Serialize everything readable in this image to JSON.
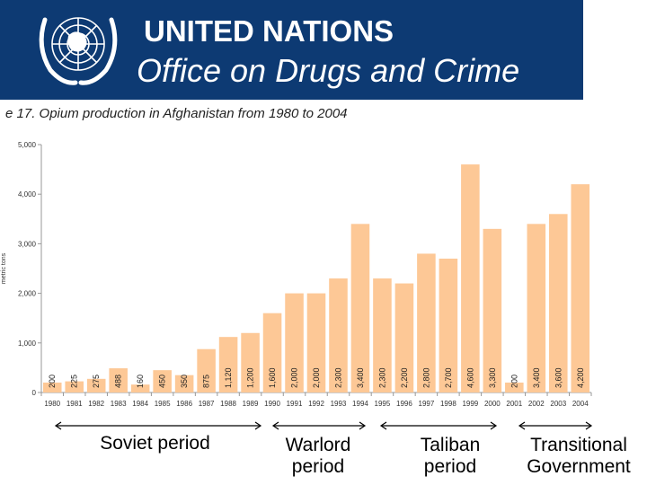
{
  "header": {
    "org_name": "UNITED NATIONS",
    "office_name": "Office on Drugs and Crime",
    "background_color": "#0d3a73"
  },
  "chart_data": {
    "type": "bar",
    "title": "e 17.  Opium production in Afghanistan from 1980 to 2004",
    "ylabel": "metric tons",
    "xlabel": "",
    "ylim": [
      0,
      5000
    ],
    "yticks": [
      "0",
      "1,000",
      "2,000",
      "3,000",
      "4,000",
      "5,000"
    ],
    "grid": false,
    "bar_color": "#fdc896",
    "categories": [
      "1980",
      "1981",
      "1982",
      "1983",
      "1984",
      "1985",
      "1986",
      "1987",
      "1988",
      "1989",
      "1990",
      "1991",
      "1992",
      "1993",
      "1994",
      "1995",
      "1996",
      "1997",
      "1998",
      "1999",
      "2000",
      "2001",
      "2002",
      "2003",
      "2004"
    ],
    "values": [
      200,
      225,
      275,
      488,
      160,
      450,
      350,
      875,
      1120,
      1200,
      1600,
      2000,
      2000,
      2300,
      3400,
      2300,
      2200,
      2800,
      2700,
      4600,
      3300,
      200,
      3400,
      3600,
      4200
    ],
    "value_labels": [
      "200",
      "225",
      "275",
      "488",
      "160",
      "450",
      "350",
      "875",
      "1,120",
      "1,200",
      "1,600",
      "2,000",
      "2,000",
      "2,300",
      "3,400",
      "2,300",
      "2,200",
      "2,800",
      "2,700",
      "4,600",
      "3,300",
      "200",
      "3,400",
      "3,600",
      "4,200"
    ]
  },
  "periods": [
    {
      "label": "Soviet period"
    },
    {
      "label": "Warlord period"
    },
    {
      "label": "Taliban period"
    },
    {
      "label": "Transitional Government"
    }
  ]
}
